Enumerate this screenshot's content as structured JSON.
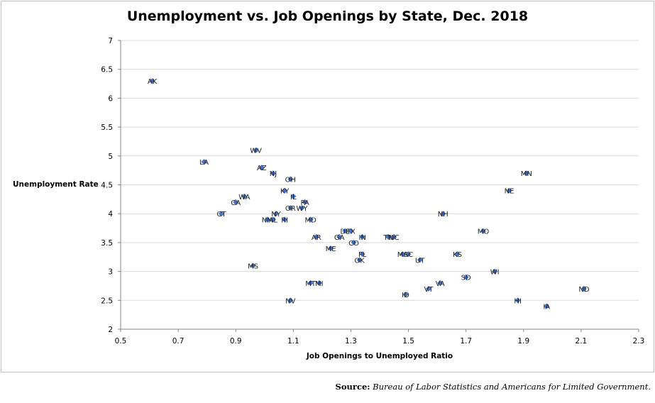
{
  "chart_data": {
    "type": "scatter",
    "title": "Unemployment vs. Job Openings by State, Dec. 2018",
    "xlabel": "Job Openings to Unemployed Ratio",
    "ylabel": "Unemployment Rate",
    "xlim": [
      0.5,
      2.3
    ],
    "ylim": [
      2,
      7
    ],
    "xticks": [
      "0.5",
      "0.7",
      "0.9",
      "1.1",
      "1.3",
      "1.5",
      "1.7",
      "1.9",
      "2.1",
      "2.3"
    ],
    "yticks": [
      "2",
      "2.5",
      "3",
      "3.5",
      "4",
      "4.5",
      "5",
      "5.5",
      "6",
      "6.5",
      "7"
    ],
    "grid": "horizontal",
    "marker_color": "#4472c4",
    "points": [
      {
        "label": "AK",
        "x": 0.61,
        "y": 6.3
      },
      {
        "label": "LA",
        "x": 0.79,
        "y": 4.9
      },
      {
        "label": "WV",
        "x": 0.97,
        "y": 5.1
      },
      {
        "label": "AZ",
        "x": 0.99,
        "y": 4.8
      },
      {
        "label": "NJ",
        "x": 1.03,
        "y": 4.7
      },
      {
        "label": "OH",
        "x": 1.09,
        "y": 4.6
      },
      {
        "label": "KY",
        "x": 1.07,
        "y": 4.4
      },
      {
        "label": "IL",
        "x": 1.1,
        "y": 4.3
      },
      {
        "label": "WA",
        "x": 0.93,
        "y": 4.3
      },
      {
        "label": "CA",
        "x": 0.9,
        "y": 4.2
      },
      {
        "label": "PA",
        "x": 1.14,
        "y": 4.2
      },
      {
        "label": "OR",
        "x": 1.09,
        "y": 4.1
      },
      {
        "label": "WY",
        "x": 1.13,
        "y": 4.1
      },
      {
        "label": "CT",
        "x": 0.85,
        "y": 4.0
      },
      {
        "label": "NY",
        "x": 1.04,
        "y": 4.0
      },
      {
        "label": "NM",
        "x": 1.01,
        "y": 3.9
      },
      {
        "label": "AL",
        "x": 1.03,
        "y": 3.9
      },
      {
        "label": "RI",
        "x": 1.07,
        "y": 3.9
      },
      {
        "label": "MD",
        "x": 1.16,
        "y": 3.9
      },
      {
        "label": "DE",
        "x": 1.28,
        "y": 3.7
      },
      {
        "label": "TX",
        "x": 1.3,
        "y": 3.7
      },
      {
        "label": "AR",
        "x": 1.18,
        "y": 3.6
      },
      {
        "label": "GA",
        "x": 1.26,
        "y": 3.6
      },
      {
        "label": "IN",
        "x": 1.34,
        "y": 3.6
      },
      {
        "label": "TN",
        "x": 1.43,
        "y": 3.6
      },
      {
        "label": "NC",
        "x": 1.45,
        "y": 3.6
      },
      {
        "label": "CO",
        "x": 1.31,
        "y": 3.5
      },
      {
        "label": "ME",
        "x": 1.23,
        "y": 3.4
      },
      {
        "label": "FL",
        "x": 1.34,
        "y": 3.3
      },
      {
        "label": "MA",
        "x": 1.48,
        "y": 3.3
      },
      {
        "label": "SC",
        "x": 1.5,
        "y": 3.3
      },
      {
        "label": "OK",
        "x": 1.33,
        "y": 3.2
      },
      {
        "label": "UT",
        "x": 1.54,
        "y": 3.2
      },
      {
        "label": "MS",
        "x": 0.96,
        "y": 3.1
      },
      {
        "label": "MN",
        "x": 1.91,
        "y": 4.7
      },
      {
        "label": "NE",
        "x": 1.85,
        "y": 4.4
      },
      {
        "label": "NH",
        "x": 1.62,
        "y": 4.0
      },
      {
        "label": "MO",
        "x": 1.76,
        "y": 3.7
      },
      {
        "label": "KS",
        "x": 1.67,
        "y": 3.3
      },
      {
        "label": "WI",
        "x": 1.8,
        "y": 3.0
      },
      {
        "label": "SD",
        "x": 1.7,
        "y": 2.9
      },
      {
        "label": "MT",
        "x": 1.16,
        "y": 2.8
      },
      {
        "label": "MI",
        "x": 1.19,
        "y": 2.8
      },
      {
        "label": "VA",
        "x": 1.61,
        "y": 2.8
      },
      {
        "label": "VT",
        "x": 1.57,
        "y": 2.7
      },
      {
        "label": "ND",
        "x": 2.11,
        "y": 2.7
      },
      {
        "label": "ID",
        "x": 1.49,
        "y": 2.6
      },
      {
        "label": "NV",
        "x": 1.09,
        "y": 2.5
      },
      {
        "label": "HI",
        "x": 1.88,
        "y": 2.5
      },
      {
        "label": "IA",
        "x": 1.98,
        "y": 2.4
      }
    ]
  },
  "source": {
    "label": "Source:",
    "text": "Bureau of Labor Statistics and Americans for Limited Government."
  }
}
